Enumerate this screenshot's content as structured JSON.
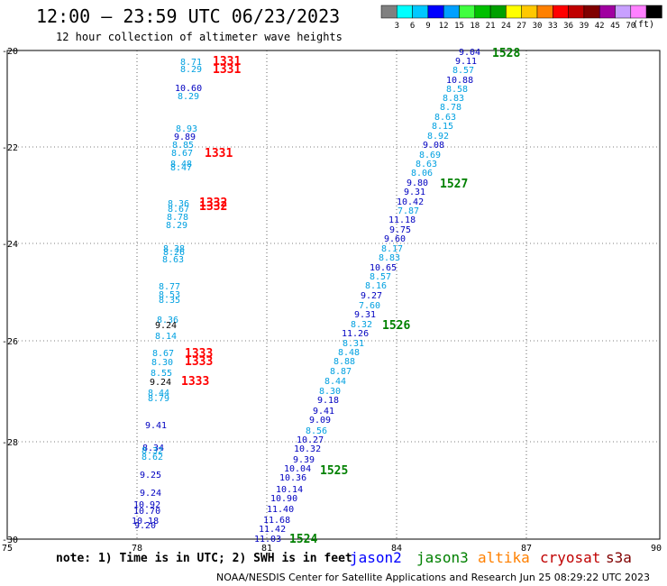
{
  "header": {
    "title": "12:00 — 23:59 UTC 06/23/2023",
    "subtitle": "12 hour collection of altimeter wave heights"
  },
  "legend": {
    "colors": [
      "#808080",
      "#00ffff",
      "#00c8ff",
      "#0000ff",
      "#00a0ff",
      "#40ff40",
      "#00c000",
      "#00a000",
      "#ffff00",
      "#ffc800",
      "#ff8000",
      "#ff0000",
      "#c00000",
      "#800000",
      "#a000a0",
      "#c8a0ff",
      "#ff80ff",
      "#000000"
    ],
    "labels": [
      "3",
      "6",
      "9",
      "12",
      "15",
      "18",
      "21",
      "24",
      "27",
      "30",
      "33",
      "36",
      "39",
      "42",
      "45",
      "70"
    ],
    "unit": "(ft)"
  },
  "axes": {
    "x_ticks": [
      "75",
      "78",
      "81",
      "84",
      "87",
      "90"
    ],
    "y_ticks": [
      "-20",
      "-22",
      "-24",
      "-26",
      "-28",
      "-30"
    ]
  },
  "track_labels": [
    {
      "text": "1528",
      "color": "#008000"
    },
    {
      "text": "1527",
      "color": "#008000"
    },
    {
      "text": "1526",
      "color": "#008000"
    },
    {
      "text": "1525",
      "color": "#008000"
    },
    {
      "text": "1524",
      "color": "#008000"
    },
    {
      "text": "1331",
      "color": "#ff0000"
    },
    {
      "text": "1331",
      "color": "#ff0000"
    },
    {
      "text": "1331",
      "color": "#ff0000"
    },
    {
      "text": "1332",
      "color": "#ff0000"
    },
    {
      "text": "1332",
      "color": "#ff0000"
    },
    {
      "text": "1333",
      "color": "#ff0000"
    },
    {
      "text": "1333",
      "color": "#ff0000"
    },
    {
      "text": "1333",
      "color": "#ff0000"
    }
  ],
  "east_track": [
    {
      "v": "9.04",
      "c": "#0000c0"
    },
    {
      "v": "9.11",
      "c": "#0000c0"
    },
    {
      "v": "8.57",
      "c": "#00a0e0"
    },
    {
      "v": "10.88",
      "c": "#0000c0"
    },
    {
      "v": "8.58",
      "c": "#00a0e0"
    },
    {
      "v": "8.83",
      "c": "#00a0e0"
    },
    {
      "v": "8.78",
      "c": "#00a0e0"
    },
    {
      "v": "8.63",
      "c": "#00a0e0"
    },
    {
      "v": "8.15",
      "c": "#00a0e0"
    },
    {
      "v": "8.92",
      "c": "#00a0e0"
    },
    {
      "v": "9.08",
      "c": "#0000c0"
    },
    {
      "v": "8.69",
      "c": "#00a0e0"
    },
    {
      "v": "8.63",
      "c": "#00a0e0"
    },
    {
      "v": "8.06",
      "c": "#00a0e0"
    },
    {
      "v": "9.80",
      "c": "#0000c0"
    },
    {
      "v": "9.31",
      "c": "#0000c0"
    },
    {
      "v": "10.42",
      "c": "#0000c0"
    },
    {
      "v": "7.87",
      "c": "#00a0e0"
    },
    {
      "v": "11.18",
      "c": "#0000c0"
    },
    {
      "v": "9.75",
      "c": "#0000c0"
    },
    {
      "v": "9.60",
      "c": "#0000c0"
    },
    {
      "v": "8.17",
      "c": "#00a0e0"
    },
    {
      "v": "8.83",
      "c": "#00a0e0"
    },
    {
      "v": "10.65",
      "c": "#0000c0"
    },
    {
      "v": "8.57",
      "c": "#00a0e0"
    },
    {
      "v": "8.16",
      "c": "#00a0e0"
    },
    {
      "v": "9.27",
      "c": "#0000c0"
    },
    {
      "v": "7.60",
      "c": "#00a0e0"
    },
    {
      "v": "9.31",
      "c": "#0000c0"
    },
    {
      "v": "8.32",
      "c": "#00a0e0"
    },
    {
      "v": "11.26",
      "c": "#0000c0"
    },
    {
      "v": "8.31",
      "c": "#00a0e0"
    },
    {
      "v": "8.48",
      "c": "#00a0e0"
    },
    {
      "v": "8.88",
      "c": "#00a0e0"
    },
    {
      "v": "8.87",
      "c": "#00a0e0"
    },
    {
      "v": "8.44",
      "c": "#00a0e0"
    },
    {
      "v": "8.30",
      "c": "#00a0e0"
    },
    {
      "v": "9.18",
      "c": "#0000c0"
    },
    {
      "v": "9.41",
      "c": "#0000c0"
    },
    {
      "v": "9.09",
      "c": "#0000c0"
    },
    {
      "v": "8.56",
      "c": "#00a0e0"
    },
    {
      "v": "10.27",
      "c": "#0000c0"
    },
    {
      "v": "10.32",
      "c": "#0000c0"
    },
    {
      "v": "9.39",
      "c": "#0000c0"
    },
    {
      "v": "10.04",
      "c": "#0000c0"
    },
    {
      "v": "10.36",
      "c": "#0000c0"
    },
    {
      "v": "10.14",
      "c": "#0000c0"
    },
    {
      "v": "10.90",
      "c": "#0000c0"
    },
    {
      "v": "11.40",
      "c": "#0000c0"
    },
    {
      "v": "11.68",
      "c": "#0000c0"
    },
    {
      "v": "11.42",
      "c": "#0000c0"
    },
    {
      "v": "11.03",
      "c": "#0000c0"
    }
  ],
  "west_upper": [
    {
      "v": "8.71",
      "c": "#00a0e0"
    },
    {
      "v": "8.29",
      "c": "#00a0e0"
    },
    {
      "v": "10.60",
      "c": "#0000c0"
    },
    {
      "v": "8.29",
      "c": "#00a0e0"
    },
    {
      "v": "8.93",
      "c": "#00a0e0"
    },
    {
      "v": "9.89",
      "c": "#0000c0"
    },
    {
      "v": "8.85",
      "c": "#00a0e0"
    },
    {
      "v": "8.67",
      "c": "#00a0e0"
    },
    {
      "v": "8.48",
      "c": "#00a0e0"
    },
    {
      "v": "8.47",
      "c": "#00a0e0"
    },
    {
      "v": "8.36",
      "c": "#00a0e0"
    },
    {
      "v": "8.67",
      "c": "#00a0e0"
    },
    {
      "v": "8.78",
      "c": "#00a0e0"
    },
    {
      "v": "8.29",
      "c": "#00a0e0"
    },
    {
      "v": "8.38",
      "c": "#00a0e0"
    },
    {
      "v": "8.26",
      "c": "#00a0e0"
    },
    {
      "v": "8.63",
      "c": "#00a0e0"
    },
    {
      "v": "8.77",
      "c": "#00a0e0"
    },
    {
      "v": "8.53",
      "c": "#00a0e0"
    },
    {
      "v": "8.35",
      "c": "#00a0e0"
    },
    {
      "v": "8.36",
      "c": "#00a0e0"
    },
    {
      "v": "9.24",
      "c": "#000000"
    },
    {
      "v": "8.14",
      "c": "#00a0e0"
    }
  ],
  "west_lower": [
    {
      "v": "8.67",
      "c": "#00a0e0"
    },
    {
      "v": "8.30",
      "c": "#00a0e0"
    },
    {
      "v": "8.55",
      "c": "#00a0e0"
    },
    {
      "v": "9.24",
      "c": "#000000"
    },
    {
      "v": "8.44",
      "c": "#00a0e0"
    },
    {
      "v": "8.79",
      "c": "#00a0e0"
    },
    {
      "v": "9.41",
      "c": "#0000c0"
    },
    {
      "v": "8.34",
      "c": "#0000c0"
    },
    {
      "v": "8.32",
      "c": "#00a0e0"
    },
    {
      "v": "8.62",
      "c": "#00a0e0"
    },
    {
      "v": "9.25",
      "c": "#0000c0"
    },
    {
      "v": "9.24",
      "c": "#0000c0"
    },
    {
      "v": "10.92",
      "c": "#0000c0"
    },
    {
      "v": "10.70",
      "c": "#0000c0"
    },
    {
      "v": "10.18",
      "c": "#0000c0"
    },
    {
      "v": "9.20",
      "c": "#0000c0"
    }
  ],
  "footer": {
    "note": "note: 1) Time is in UTC; 2) SWH is in feet",
    "missions": [
      {
        "name": "jason2",
        "color": "#0000ff"
      },
      {
        "name": "jason3",
        "color": "#008000"
      },
      {
        "name": "altika",
        "color": "#ff8000"
      },
      {
        "name": "cryosat",
        "color": "#c00000"
      },
      {
        "name": "s3a",
        "color": "#800000"
      }
    ],
    "credit": "NOAA/NESDIS Center for Satellite Applications and Research   Jun 25 08:29:22 UTC 2023"
  }
}
